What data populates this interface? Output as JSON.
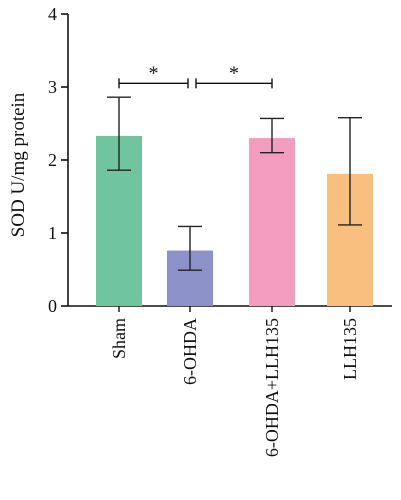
{
  "chart_data": {
    "type": "bar",
    "ylabel": "SOD U/mg protein",
    "ylim": [
      0,
      4
    ],
    "yticks": [
      "0",
      "1",
      "2",
      "3",
      "4"
    ],
    "categories": [
      "Sham",
      "6-OHDA",
      "6-OHDA+LLH135",
      "LLH135"
    ],
    "values": [
      2.33,
      0.76,
      2.3,
      1.81
    ],
    "error_lower": [
      1.86,
      0.49,
      2.1,
      1.11
    ],
    "error_upper": [
      2.86,
      1.09,
      2.57,
      2.58
    ],
    "colors": [
      "#71c59e",
      "#8c91c7",
      "#f29cc0",
      "#f9bf7f"
    ],
    "significance": [
      {
        "from": 0,
        "to": 1,
        "y": 3.05,
        "label": "*"
      },
      {
        "from": 1,
        "to": 2,
        "y": 3.05,
        "label": "*"
      }
    ]
  }
}
